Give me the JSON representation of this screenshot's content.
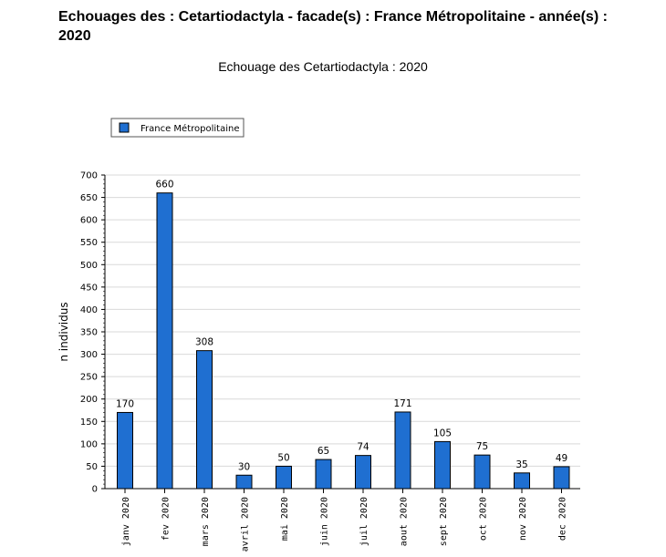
{
  "page_title": "Echouages des : Cetartiodactyla - facade(s) : France Métropolitaine - année(s) : 2020",
  "chart_data": {
    "type": "bar",
    "title": "Echouage des Cetartiodactyla : 2020",
    "xlabel": "",
    "ylabel": "n individus",
    "ylim": [
      0,
      700
    ],
    "ytick_step": 50,
    "grid": true,
    "legend_position": "top-left",
    "categories": [
      "janv 2020",
      "fev 2020",
      "mars 2020",
      "avril 2020",
      "mai 2020",
      "juin 2020",
      "juil 2020",
      "aout 2020",
      "sept 2020",
      "oct 2020",
      "nov 2020",
      "dec 2020"
    ],
    "series": [
      {
        "name": "France Métropolitaine",
        "color": "#1f6fd1",
        "values": [
          170,
          660,
          308,
          30,
          50,
          65,
          74,
          171,
          105,
          75,
          35,
          49
        ]
      }
    ]
  }
}
